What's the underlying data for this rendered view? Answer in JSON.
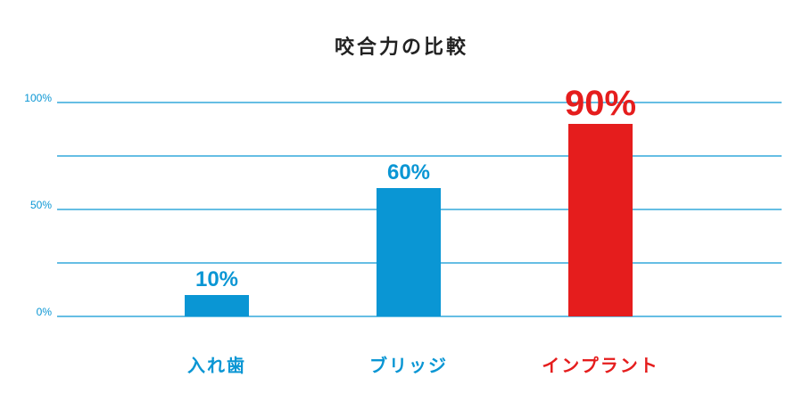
{
  "chart_data": {
    "type": "bar",
    "title": "咬合力の比較",
    "categories": [
      "入れ歯",
      "ブリッジ",
      "インプラント"
    ],
    "values": [
      10,
      60,
      90
    ],
    "value_labels": [
      "10%",
      "60%",
      "90%"
    ],
    "ylim": [
      0,
      100
    ],
    "yticks": [
      {
        "value": 0,
        "label": "0%"
      },
      {
        "value": 50,
        "label": "50%"
      },
      {
        "value": 100,
        "label": "100%"
      }
    ],
    "gridlines": [
      0,
      25,
      50,
      75,
      100
    ],
    "grid": true,
    "legend": "none",
    "xlabel": "",
    "ylabel": ""
  },
  "colors": {
    "primary": "#0a96d4",
    "highlight": "#e51d1d",
    "grid": "#0a96d4",
    "title": "#222222"
  },
  "highlight_index": 2
}
